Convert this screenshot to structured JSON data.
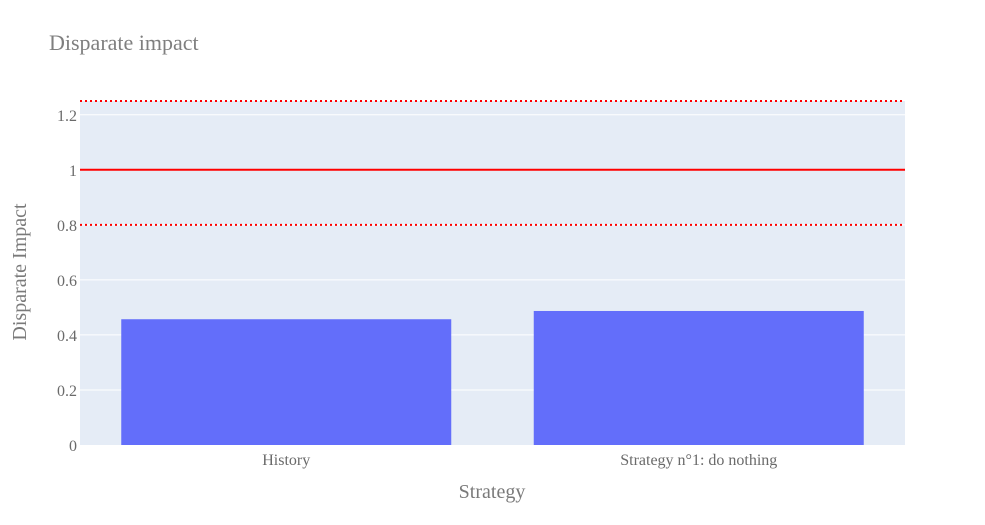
{
  "chart_data": {
    "type": "bar",
    "title": "Disparate impact",
    "xlabel": "Strategy",
    "ylabel": "Disparate Impact",
    "categories": [
      "History",
      "Strategy n°1: do nothing"
    ],
    "values": [
      0.457,
      0.487
    ],
    "ylim": [
      0,
      1.25
    ],
    "yticks": [
      0,
      0.2,
      0.4,
      0.6,
      0.8,
      1,
      1.2
    ],
    "ytick_labels": [
      "0",
      "0.2",
      "0.4",
      "0.6",
      "0.8",
      "1",
      "1.2"
    ],
    "reference_lines": [
      {
        "y": 1.0,
        "style": "solid",
        "color": "#ff0000"
      },
      {
        "y": 0.8,
        "style": "dotted",
        "color": "#ff0000"
      },
      {
        "y": 1.25,
        "style": "dotted",
        "color": "#ff0000"
      }
    ],
    "grid": true,
    "legend": "none",
    "colors": {
      "bar": "#636efa",
      "plot_background": "#e5ecf6",
      "grid": "#ffffff"
    }
  }
}
